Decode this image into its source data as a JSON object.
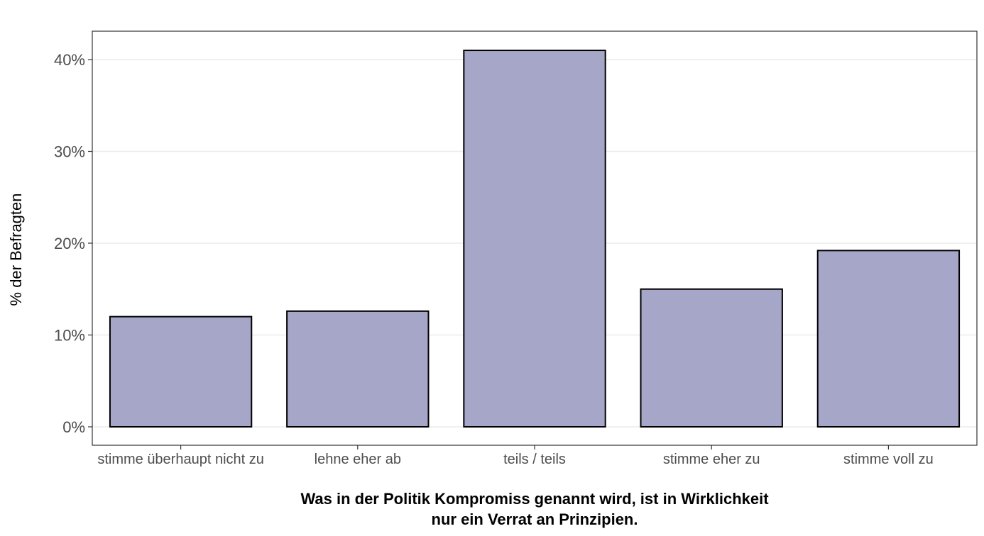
{
  "chart_data": {
    "type": "bar",
    "categories": [
      "stimme überhaupt nicht zu",
      "lehne eher ab",
      "teils / teils",
      "stimme eher zu",
      "stimme voll zu"
    ],
    "values": [
      12.0,
      12.6,
      41.0,
      15.0,
      19.2
    ],
    "value_format": "percent",
    "ylabel": "% der Befragten",
    "xlabel": [
      "Was in der Politik Kompromiss genannt wird, ist in Wirklichkeit",
      "nur ein Verrat an Prinzipien."
    ],
    "yticks": [
      0,
      10,
      20,
      30,
      40
    ],
    "ytick_labels": [
      "0%",
      "10%",
      "20%",
      "30%",
      "40%"
    ],
    "ylim": [
      0,
      43
    ],
    "grid": "horizontal",
    "bar_color": "#a6a6c8",
    "bar_edge_color": "#000000",
    "gridline_color": "#ebebeb",
    "panel_border_color": "#333333"
  }
}
